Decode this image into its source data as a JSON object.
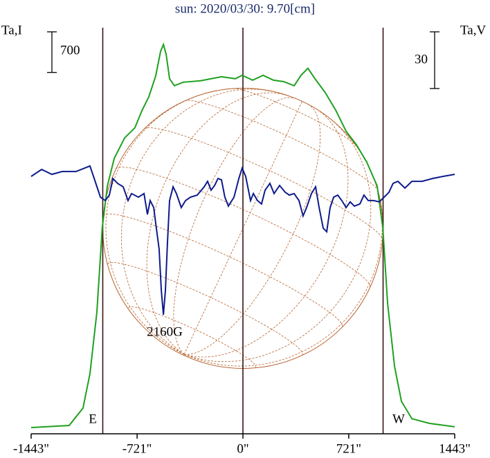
{
  "chart_data": {
    "type": "line",
    "title": "sun: 2020/03/30: 9.70[cm]",
    "ylabel": "Ta,I",
    "y2label": "Ta,V",
    "xlim": [
      -1443,
      1443
    ],
    "xticks": [
      {
        "value": -1443,
        "label": "-1443\""
      },
      {
        "value": -721,
        "label": "-721\""
      },
      {
        "value": 0,
        "label": "0\""
      },
      {
        "value": 721,
        "label": "721\""
      },
      {
        "value": 1443,
        "label": "1443\""
      }
    ],
    "ylim": [
      0,
      7000
    ],
    "y2lim": [
      -137.3,
      77.6
    ],
    "scale_bars": {
      "y": 700,
      "y2": 30
    },
    "disk_radius": 955,
    "annotations": [
      "E",
      "W",
      "2160G"
    ],
    "series": [
      {
        "name": "I",
        "color": "#1ea01e",
        "x": [
          -1443,
          -1184,
          -1090,
          -1042,
          -995,
          -958,
          -924,
          -877,
          -806,
          -736,
          -688,
          -641,
          -594,
          -561,
          -542,
          -523,
          -500,
          -467,
          -406,
          -288,
          -146,
          -52,
          -5,
          66,
          137,
          208,
          278,
          349,
          396,
          443,
          491,
          561,
          632,
          703,
          774,
          844,
          915,
          953,
          986,
          1033,
          1080,
          1151,
          1269,
          1443
        ],
        "values": [
          107,
          143,
          442,
          1038,
          2100,
          3555,
          4270,
          4745,
          5100,
          5275,
          5570,
          5810,
          6170,
          6590,
          6710,
          6540,
          6120,
          6000,
          6060,
          6085,
          6155,
          6120,
          6180,
          6095,
          6180,
          6095,
          6070,
          6000,
          6180,
          6300,
          6120,
          5880,
          5580,
          5215,
          4980,
          4680,
          4270,
          3555,
          2240,
          1160,
          560,
          260,
          180,
          120
        ]
      },
      {
        "name": "V",
        "color": "#0c1a8c",
        "axis": "y2",
        "x": [
          -1443,
          -1372,
          -1302,
          -1231,
          -1137,
          -1066,
          -1042,
          -1018,
          -971,
          -938,
          -910,
          -886,
          -854,
          -816,
          -783,
          -759,
          -712,
          -674,
          -651,
          -632,
          -608,
          -590,
          -571,
          -556,
          -542,
          -528,
          -514,
          -500,
          -476,
          -453,
          -420,
          -391,
          -358,
          -311,
          -264,
          -241,
          -217,
          -193,
          -170,
          -146,
          -123,
          -99,
          -61,
          -28,
          -5,
          19,
          52,
          71,
          99,
          127,
          151,
          184,
          212,
          250,
          288,
          316,
          349,
          382,
          410,
          434,
          467,
          495,
          519,
          547,
          571,
          594,
          618,
          646,
          674,
          703,
          731,
          759,
          797,
          825,
          854,
          891,
          929,
          962,
          995,
          1023,
          1056,
          1104,
          1151,
          1221,
          1292,
          1363,
          1443
        ],
        "values": [
          -1.1,
          2.6,
          0,
          1.5,
          1.5,
          3.7,
          4.4,
          -1.1,
          -12.1,
          -13.9,
          -11.0,
          -2.2,
          -4.8,
          -6.6,
          -13.9,
          -10.2,
          -12.1,
          -10.2,
          -21.2,
          -13.9,
          -17.6,
          -28.5,
          -39.5,
          -61.5,
          -74.3,
          -61.5,
          -35.9,
          -13.9,
          -6.6,
          -10.2,
          -17.6,
          -13.9,
          -12.1,
          -11.0,
          -6.6,
          -3.7,
          -8.4,
          -5.9,
          -2.2,
          -2.9,
          -12.1,
          -16.8,
          -12.1,
          -2.2,
          3.3,
          -1.1,
          -13.9,
          -10.2,
          -13.9,
          -15.7,
          -8.4,
          -4.8,
          -10.2,
          -5.9,
          -9.5,
          -11.0,
          -10.2,
          -13.9,
          -22.0,
          -17.6,
          -10.2,
          -6.6,
          -17.6,
          -28.5,
          -30.4,
          -17.6,
          -12.1,
          -11.0,
          -13.9,
          -17.6,
          -14.6,
          -16.8,
          -15.7,
          -11.0,
          -13.9,
          -13.9,
          -14.6,
          -12.1,
          -9.5,
          -4.8,
          -3.7,
          -7.3,
          -3.7,
          -3.7,
          -2.2,
          -1.1,
          0
        ]
      }
    ]
  }
}
